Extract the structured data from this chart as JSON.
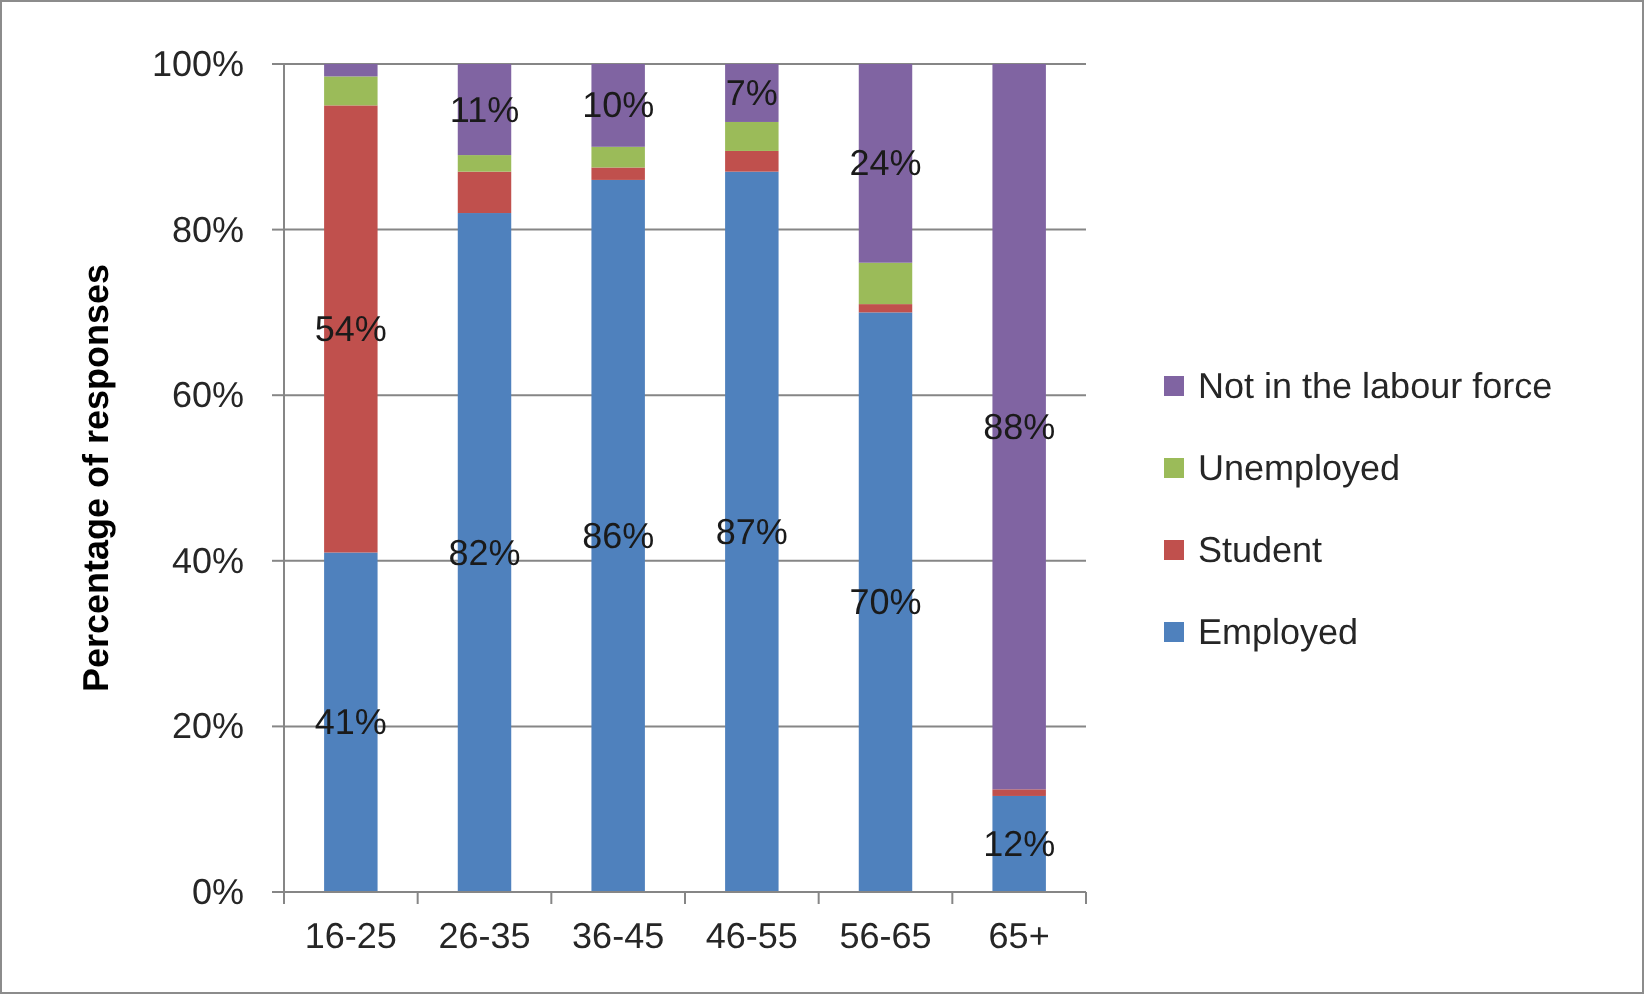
{
  "chart_data": {
    "type": "bar",
    "ylabel": "Percentage of responses",
    "categories": [
      "16-25",
      "26-35",
      "36-45",
      "46-55",
      "56-65",
      "65+"
    ],
    "stacked": true,
    "ylim": [
      0,
      100
    ],
    "yticks": [
      {
        "value": 0,
        "label": "0%"
      },
      {
        "value": 20,
        "label": "20%"
      },
      {
        "value": 40,
        "label": "40%"
      },
      {
        "value": 60,
        "label": "60%"
      },
      {
        "value": 80,
        "label": "80%"
      },
      {
        "value": 100,
        "label": "100%"
      }
    ],
    "grid": "y",
    "legend": "right",
    "series": [
      {
        "name": "Employed",
        "color": "#4f81bd",
        "values": [
          41,
          82,
          86,
          87,
          70,
          11.6
        ],
        "value_labels": [
          "41%",
          "82%",
          "86%",
          "87%",
          "70%",
          "12%"
        ]
      },
      {
        "name": "Student",
        "color": "#c0504d",
        "values": [
          54,
          5,
          1.5,
          2.5,
          1,
          0.8
        ],
        "value_labels": [
          "54%",
          null,
          null,
          null,
          null,
          null
        ]
      },
      {
        "name": "Unemployed",
        "color": "#9bbb59",
        "values": [
          3.5,
          2,
          2.5,
          3.5,
          5,
          0
        ]
      },
      {
        "name": "Not in the labour force",
        "color": "#8064a2",
        "values": [
          1.5,
          11,
          10,
          7,
          24,
          87.6
        ],
        "value_labels": [
          null,
          "11%",
          "10%",
          "7%",
          "24%",
          "88%"
        ]
      }
    ]
  }
}
